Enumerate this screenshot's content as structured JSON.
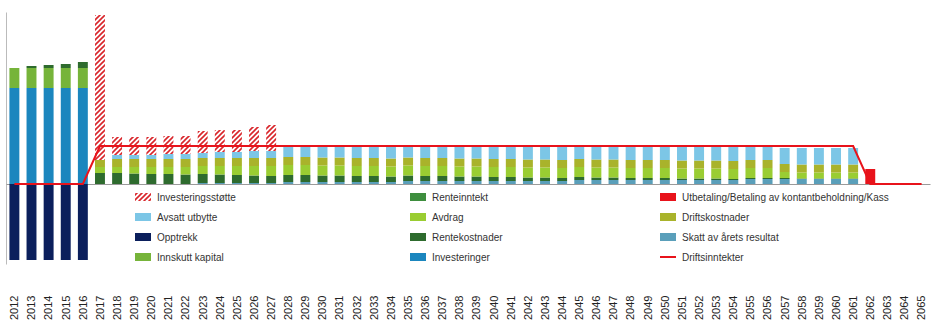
{
  "chart_data": {
    "type": "bar",
    "stacked": true,
    "legend": "bottom",
    "tick_labels": "x",
    "grid": false,
    "ylim": [
      -80,
      172
    ],
    "categories": [
      "2012",
      "2013",
      "2014",
      "2015",
      "2016",
      "2017",
      "2018",
      "2019",
      "2020",
      "2021",
      "2022",
      "2023",
      "2024",
      "2025",
      "2026",
      "2027",
      "2028",
      "2029",
      "2030",
      "2031",
      "2032",
      "2033",
      "2034",
      "2035",
      "2036",
      "2037",
      "2038",
      "2039",
      "2040",
      "2041",
      "2042",
      "2043",
      "2044",
      "2045",
      "2046",
      "2047",
      "2048",
      "2049",
      "2050",
      "2051",
      "2052",
      "2053",
      "2054",
      "2055",
      "2056",
      "2057",
      "2058",
      "2059",
      "2060",
      "2061",
      "2062",
      "2063",
      "2064",
      "2065"
    ],
    "series": [
      {
        "name": "Investeringer",
        "color": "#1b86be",
        "values": [
          96,
          96,
          96,
          96,
          96,
          0,
          0,
          0,
          0,
          0,
          0,
          0,
          0,
          0,
          0,
          0,
          0,
          0,
          0,
          0,
          0,
          0,
          0,
          0,
          0,
          0,
          0,
          0,
          0,
          0,
          0,
          0,
          0,
          0,
          0,
          0,
          0,
          0,
          0,
          0,
          0,
          0,
          0,
          0,
          0,
          0,
          0,
          0,
          0,
          0,
          0,
          0,
          0,
          0
        ]
      },
      {
        "name": "Innskutt kapital",
        "color": "#76b43a",
        "values": [
          20,
          20,
          20,
          20,
          20,
          0,
          0,
          0,
          0,
          0,
          0,
          0,
          0,
          0,
          0,
          0,
          0,
          0,
          0,
          0,
          0,
          0,
          0,
          0,
          0,
          0,
          0,
          0,
          0,
          0,
          0,
          0,
          0,
          0,
          0,
          0,
          0,
          0,
          0,
          0,
          0,
          0,
          0,
          0,
          0,
          0,
          0,
          0,
          0,
          0,
          0,
          0,
          0,
          0
        ]
      },
      {
        "name": "Skatt av årets resultat",
        "color": "#5a9fba",
        "values": [
          0,
          0,
          0,
          0,
          0,
          0,
          0,
          0,
          0,
          0,
          0,
          1,
          1,
          1,
          1,
          1,
          2,
          2,
          2,
          2,
          2,
          2,
          2,
          3,
          3,
          3,
          3,
          3,
          3,
          3,
          3,
          3,
          3,
          4,
          4,
          4,
          4,
          4,
          4,
          4,
          4,
          4,
          4,
          5,
          5,
          5,
          5,
          5,
          5,
          5,
          0,
          0,
          0,
          0
        ]
      },
      {
        "name": "Rentekostnader",
        "color": "#2e6b2e",
        "values": [
          0,
          2,
          3,
          4,
          6,
          11,
          11,
          10.5,
          10,
          10,
          9.5,
          9,
          8.5,
          8,
          7.5,
          7,
          7,
          7,
          6.5,
          6.5,
          6,
          6,
          5.5,
          5.5,
          5,
          5,
          4.5,
          4.5,
          4,
          4,
          3.5,
          3.5,
          3,
          3,
          2.5,
          2.5,
          2,
          2,
          2,
          1.5,
          1.5,
          1.5,
          1,
          1,
          1,
          1,
          0.5,
          0.5,
          0.5,
          0.5,
          0,
          0,
          0,
          0
        ]
      },
      {
        "name": "Renteinntekt",
        "color": "#3e8e3e",
        "values": [
          0,
          0,
          0,
          0,
          0,
          0,
          0,
          0,
          0,
          0,
          0,
          0,
          0,
          0,
          0,
          0,
          0,
          0,
          0,
          0,
          0,
          0,
          0,
          0,
          0,
          0,
          0,
          0,
          0,
          0,
          0,
          0,
          0,
          0,
          0,
          0,
          0,
          0,
          0,
          0,
          0,
          0,
          0,
          0,
          0,
          0,
          0,
          0,
          0,
          0,
          0,
          0,
          0,
          0
        ]
      },
      {
        "name": "Avdrag",
        "color": "#9acd32",
        "values": [
          0,
          0,
          0,
          0,
          0,
          6,
          6,
          6.5,
          7,
          7,
          7.5,
          8,
          8.5,
          9,
          9.5,
          10,
          10,
          10,
          10,
          10,
          10,
          10,
          10,
          10,
          10,
          10,
          10,
          10,
          10,
          10,
          10,
          10,
          10,
          10,
          10,
          10,
          10,
          10,
          10,
          10,
          10,
          10,
          10,
          10,
          10,
          6,
          6,
          6,
          6,
          6,
          0,
          0,
          0,
          0
        ]
      },
      {
        "name": "Driftskostnader",
        "color": "#a9b32b",
        "values": [
          0,
          0,
          0,
          0,
          0,
          7,
          8,
          8,
          8,
          8,
          8,
          8,
          8,
          8,
          8,
          8,
          8,
          8,
          8,
          8,
          8,
          8,
          8,
          8,
          8,
          8,
          8,
          8,
          8,
          8,
          8,
          8,
          8,
          8,
          8,
          8,
          8,
          8,
          8,
          8,
          8,
          8,
          8,
          8,
          8,
          8,
          8,
          8,
          8,
          8,
          0,
          0,
          0,
          0
        ]
      },
      {
        "name": "Avsatt utbytte",
        "color": "#7cc6e6",
        "values": [
          0,
          0,
          0,
          0,
          0,
          0,
          4,
          4,
          4,
          5,
          5,
          5,
          6,
          6,
          7,
          7,
          12,
          12,
          12.5,
          12.5,
          13,
          13,
          13.5,
          12.5,
          13,
          13,
          13.5,
          13.5,
          14,
          14,
          14.5,
          14.5,
          15,
          14,
          14.5,
          14.5,
          15,
          15,
          15,
          15.5,
          15.5,
          15.5,
          16,
          15,
          15,
          16,
          16.5,
          16.5,
          16.5,
          16.5,
          0,
          0,
          0,
          0
        ]
      },
      {
        "name": "Utbetaling/Betaling av kontantbeholdning/Kass",
        "color": "#e8131b",
        "values": [
          0,
          0,
          0,
          0,
          0,
          0,
          0,
          0,
          0,
          0,
          0,
          0,
          0,
          0,
          0,
          0,
          0,
          0,
          0,
          0,
          0,
          0,
          0,
          0,
          0,
          0,
          0,
          0,
          0,
          0,
          0,
          0,
          0,
          0,
          0,
          0,
          0,
          0,
          0,
          0,
          0,
          0,
          0,
          0,
          0,
          0,
          0,
          0,
          0,
          0,
          15,
          0,
          0,
          0
        ]
      },
      {
        "name": "Investeringsstøtte",
        "color": "#d9262b",
        "line_style": "hatched",
        "values": [
          0,
          0,
          0,
          0,
          0,
          145,
          18,
          18,
          18,
          18,
          18,
          22,
          22,
          22,
          24,
          26,
          0,
          0,
          0,
          0,
          0,
          0,
          0,
          0,
          0,
          0,
          0,
          0,
          0,
          0,
          0,
          0,
          0,
          0,
          0,
          0,
          0,
          0,
          0,
          0,
          0,
          0,
          0,
          0,
          0,
          0,
          0,
          0,
          0,
          0,
          0,
          0,
          0,
          0
        ]
      },
      {
        "name": "Opptrekk",
        "color": "#0b1f5c",
        "values": [
          -76,
          -76,
          -76,
          -76,
          -76,
          0,
          0,
          0,
          0,
          0,
          0,
          0,
          0,
          0,
          0,
          0,
          0,
          0,
          0,
          0,
          0,
          0,
          0,
          0,
          0,
          0,
          0,
          0,
          0,
          0,
          0,
          0,
          0,
          0,
          0,
          0,
          0,
          0,
          0,
          0,
          0,
          0,
          0,
          0,
          0,
          0,
          0,
          0,
          0,
          0,
          0,
          0,
          0,
          0
        ]
      },
      {
        "name": "Driftsinntekter",
        "type": "line",
        "color": "#e8131b",
        "values": [
          0,
          0,
          0,
          0,
          0,
          38,
          38,
          38,
          38,
          38,
          38,
          38,
          38,
          38,
          38,
          38,
          38,
          38,
          38,
          38,
          38,
          38,
          38,
          38,
          38,
          38,
          38,
          38,
          38,
          38,
          38,
          38,
          38,
          38,
          38,
          38,
          38,
          38,
          38,
          38,
          38,
          38,
          38,
          38,
          38,
          38,
          38,
          38,
          38,
          38,
          0,
          0,
          0,
          0
        ]
      }
    ]
  }
}
